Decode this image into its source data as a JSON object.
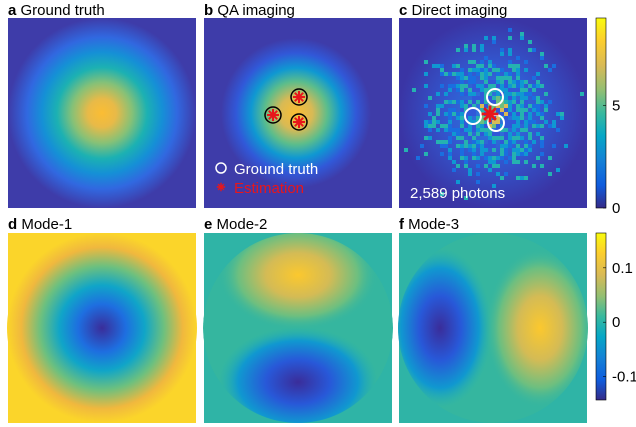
{
  "chart_data": [
    {
      "type": "heatmap",
      "panel": "a",
      "title": "Ground truth"
    },
    {
      "type": "heatmap",
      "panel": "b",
      "title": "QA imaging",
      "legend": [
        "Ground truth",
        "Estimation"
      ]
    },
    {
      "type": "heatmap",
      "panel": "c",
      "title": "Direct imaging",
      "annotation": "2,589 photons",
      "ylim": [
        0,
        9.25
      ],
      "yticks": [
        0,
        5
      ]
    },
    {
      "type": "heatmap",
      "panel": "d",
      "title": "Mode-1"
    },
    {
      "type": "heatmap",
      "panel": "e",
      "title": "Mode-2"
    },
    {
      "type": "heatmap",
      "panel": "f",
      "title": "Mode-3",
      "ylim": [
        -0.143,
        0.164
      ],
      "yticks": [
        0.1,
        0,
        -0.1
      ]
    }
  ]
}
